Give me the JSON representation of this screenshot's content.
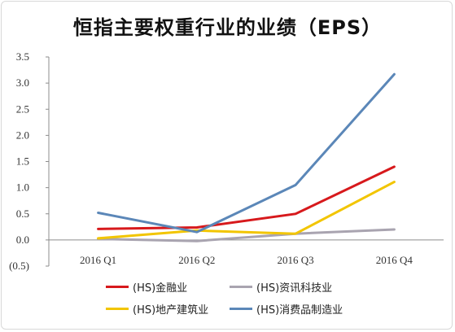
{
  "chart_data": {
    "type": "line",
    "title": "恒指主要权重行业的业绩（EPS）",
    "categories": [
      "2016 Q1",
      "2016 Q2",
      "2016 Q3",
      "2016 Q4"
    ],
    "ylim": [
      -0.5,
      3.5
    ],
    "yticks": [
      "3.5",
      "3.0",
      "2.5",
      "2.0",
      "1.5",
      "1.0",
      "0.5",
      "0.0",
      "(0.5)"
    ],
    "ytick_values": [
      3.5,
      3.0,
      2.5,
      2.0,
      1.5,
      1.0,
      0.5,
      0.0,
      -0.5
    ],
    "grid": false,
    "legend_position": "bottom",
    "series": [
      {
        "name": "(HS)金融业",
        "color": "#d7191c",
        "values": [
          0.21,
          0.24,
          0.5,
          1.4
        ]
      },
      {
        "name": "(HS)资讯科技业",
        "color": "#a9a4b0",
        "values": [
          0.02,
          -0.02,
          0.12,
          0.2
        ]
      },
      {
        "name": "(HS)地产建筑业",
        "color": "#f2c500",
        "values": [
          0.03,
          0.18,
          0.12,
          1.11
        ]
      },
      {
        "name": "(HS)消费品制造业",
        "color": "#5b87b8",
        "values": [
          0.52,
          0.15,
          1.05,
          3.17
        ]
      }
    ]
  }
}
